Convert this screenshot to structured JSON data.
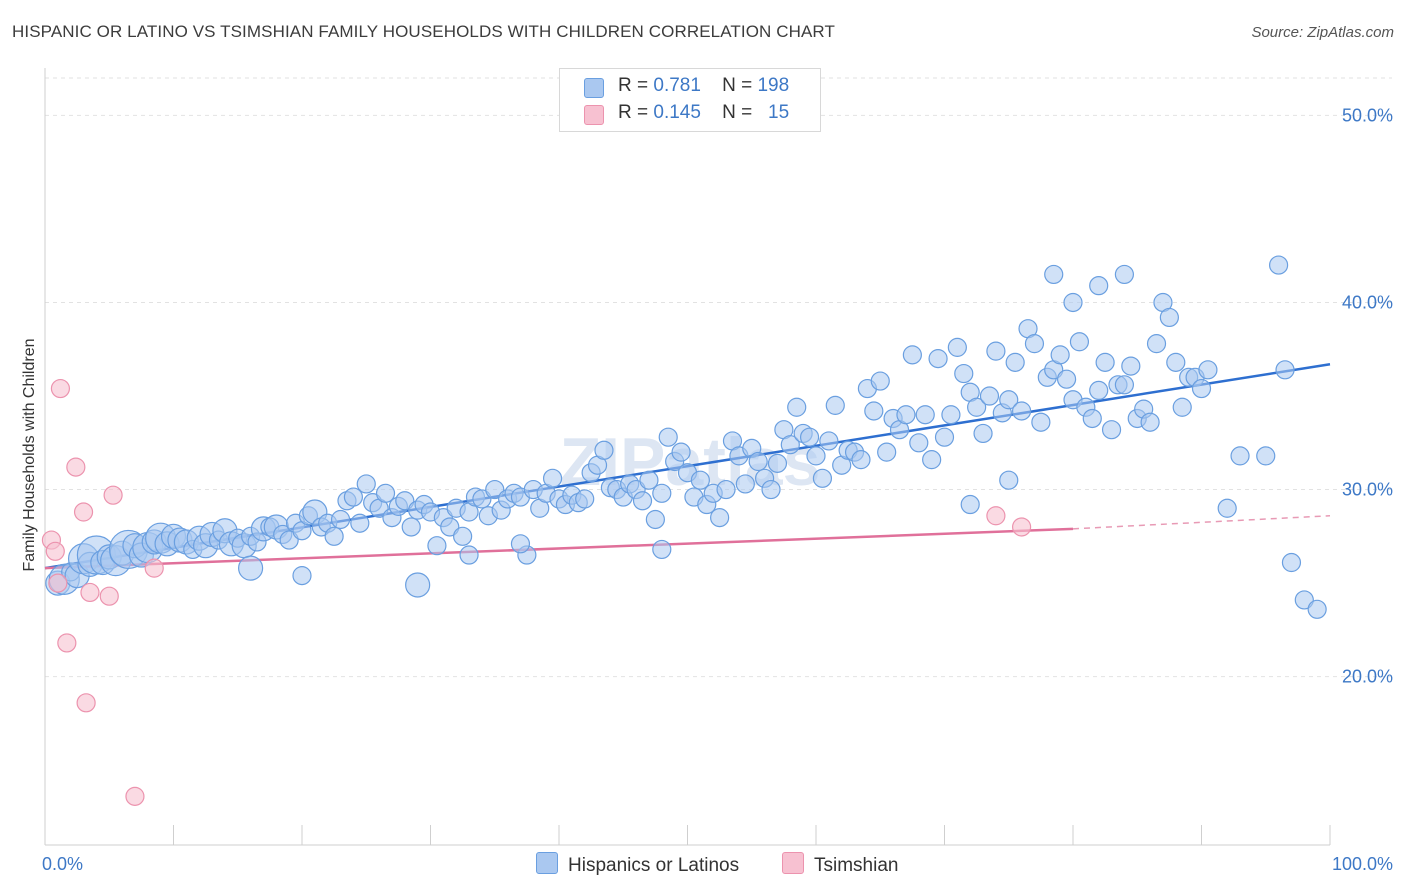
{
  "title": "HISPANIC OR LATINO VS TSIMSHIAN FAMILY HOUSEHOLDS WITH CHILDREN CORRELATION CHART",
  "source": "Source: ZipAtlas.com",
  "watermark": "ZIPatlas",
  "legend": {
    "rows": [
      {
        "r_label": "R =",
        "r_value": "0.781",
        "n_label": "N =",
        "n_value": "198",
        "color": "#aac8f0",
        "border": "#6a9fe0"
      },
      {
        "r_label": "R =",
        "r_value": "0.145",
        "n_label": "N =",
        "n_value": "15",
        "color": "#f7c1d1",
        "border": "#ec93ae"
      }
    ]
  },
  "bottom_legend": {
    "hispanic": {
      "label": "Hispanics or Latinos",
      "color": "#aac8f0"
    },
    "tsimshian": {
      "label": "Tsimshian",
      "color": "#f7c1d1"
    }
  },
  "chart_data": {
    "type": "scatter",
    "title": "HISPANIC OR LATINO VS TSIMSHIAN FAMILY HOUSEHOLDS WITH CHILDREN CORRELATION CHART",
    "xlabel": "",
    "ylabel": "Family Households with Children",
    "xlim": [
      0,
      100
    ],
    "ylim": [
      11,
      52
    ],
    "x_tick_labels": [
      "0.0%",
      "100.0%"
    ],
    "y_ticks": [
      20,
      30,
      40,
      50
    ],
    "y_tick_labels": [
      "20.0%",
      "30.0%",
      "40.0%",
      "50.0%"
    ],
    "grid": true,
    "series": [
      {
        "name": "Hispanics or Latinos",
        "color": "#6a9fe0",
        "fill": "#aac8f0",
        "trend": {
          "x": [
            0,
            100
          ],
          "y": [
            25.8,
            36.7
          ]
        },
        "points": [
          [
            1,
            25.0,
            2
          ],
          [
            1.5,
            25.2,
            3
          ],
          [
            2,
            25.6,
            1
          ],
          [
            2.5,
            25.4,
            2
          ],
          [
            3,
            26.3,
            3
          ],
          [
            3.5,
            26.0,
            2
          ],
          [
            4,
            26.5,
            4
          ],
          [
            4.5,
            26.1,
            2
          ],
          [
            5,
            26.4,
            2
          ],
          [
            5.5,
            26.2,
            3
          ],
          [
            6,
            26.6,
            2
          ],
          [
            6.5,
            26.8,
            4
          ],
          [
            7,
            27.0,
            2
          ],
          [
            7.5,
            26.5,
            2
          ],
          [
            8,
            26.9,
            3
          ],
          [
            8.5,
            27.2,
            2
          ],
          [
            9,
            27.4,
            3
          ],
          [
            9.5,
            27.1,
            2
          ],
          [
            10,
            27.5,
            2
          ],
          [
            10.5,
            27.3,
            2
          ],
          [
            11,
            27.2,
            2
          ],
          [
            11.5,
            26.8,
            1
          ],
          [
            12,
            27.4,
            2
          ],
          [
            12.5,
            27.0,
            2
          ],
          [
            13,
            27.6,
            2
          ],
          [
            13.5,
            27.3,
            1
          ],
          [
            14,
            27.8,
            2
          ],
          [
            14.5,
            27.1,
            2
          ],
          [
            15,
            27.4,
            1
          ],
          [
            15.5,
            27.0,
            2
          ],
          [
            16,
            27.5,
            1
          ],
          [
            16.5,
            27.2,
            1
          ],
          [
            17,
            27.9,
            2
          ],
          [
            17.5,
            28.0,
            1
          ],
          [
            18,
            28.0,
            2
          ],
          [
            18.5,
            27.6,
            1
          ],
          [
            19,
            27.3,
            1
          ],
          [
            19.5,
            28.2,
            1
          ],
          [
            20,
            27.8,
            1
          ],
          [
            20.5,
            28.6,
            1
          ],
          [
            21,
            28.8,
            2
          ],
          [
            21.5,
            28.0,
            1
          ],
          [
            22,
            28.2,
            1
          ],
          [
            22.5,
            27.5,
            1
          ],
          [
            23,
            28.4,
            1
          ],
          [
            23.5,
            29.4,
            1
          ],
          [
            24,
            29.6,
            1
          ],
          [
            24.5,
            28.2,
            1
          ],
          [
            25,
            30.3,
            1
          ],
          [
            25.5,
            29.3,
            1
          ],
          [
            26,
            29.0,
            1
          ],
          [
            26.5,
            29.8,
            1
          ],
          [
            27,
            28.5,
            1
          ],
          [
            27.5,
            29.1,
            1
          ],
          [
            28,
            29.4,
            1
          ],
          [
            28.5,
            28.0,
            1
          ],
          [
            29,
            28.9,
            1
          ],
          [
            29.5,
            29.2,
            1
          ],
          [
            30,
            28.8,
            1
          ],
          [
            30.5,
            27.0,
            1
          ],
          [
            31,
            28.5,
            1
          ],
          [
            31.5,
            28.0,
            1
          ],
          [
            32,
            29.0,
            1
          ],
          [
            32.5,
            27.5,
            1
          ],
          [
            33,
            28.8,
            1
          ],
          [
            33.5,
            29.6,
            1
          ],
          [
            34,
            29.5,
            1
          ],
          [
            34.5,
            28.6,
            1
          ],
          [
            35,
            30.0,
            1
          ],
          [
            35.5,
            28.9,
            1
          ],
          [
            36,
            29.5,
            1
          ],
          [
            36.5,
            29.8,
            1
          ],
          [
            37,
            29.6,
            1
          ],
          [
            37.5,
            26.5,
            1
          ],
          [
            38,
            30.0,
            1
          ],
          [
            38.5,
            29.0,
            1
          ],
          [
            39,
            29.8,
            1
          ],
          [
            39.5,
            30.6,
            1
          ],
          [
            40,
            29.5,
            1
          ],
          [
            40.5,
            29.2,
            1
          ],
          [
            41,
            29.7,
            1
          ],
          [
            41.5,
            29.3,
            1
          ],
          [
            42,
            29.5,
            1
          ],
          [
            42.5,
            30.9,
            1
          ],
          [
            43,
            31.3,
            1
          ],
          [
            43.5,
            32.1,
            1
          ],
          [
            44,
            30.1,
            1
          ],
          [
            44.5,
            30.0,
            1
          ],
          [
            45,
            29.6,
            1
          ],
          [
            45.5,
            30.3,
            1
          ],
          [
            46,
            30.0,
            1
          ],
          [
            46.5,
            29.4,
            1
          ],
          [
            47,
            30.5,
            1
          ],
          [
            47.5,
            28.4,
            1
          ],
          [
            48,
            29.8,
            1
          ],
          [
            48.5,
            32.8,
            1
          ],
          [
            49,
            31.5,
            1
          ],
          [
            49.5,
            32.0,
            1
          ],
          [
            50,
            30.9,
            1
          ],
          [
            50.5,
            29.6,
            1
          ],
          [
            51,
            30.5,
            1
          ],
          [
            51.5,
            29.2,
            1
          ],
          [
            52,
            29.8,
            1
          ],
          [
            52.5,
            28.5,
            1
          ],
          [
            53,
            30.0,
            1
          ],
          [
            53.5,
            32.6,
            1
          ],
          [
            54,
            31.8,
            1
          ],
          [
            54.5,
            30.3,
            1
          ],
          [
            55,
            32.2,
            1
          ],
          [
            55.5,
            31.5,
            1
          ],
          [
            56,
            30.6,
            1
          ],
          [
            56.5,
            30.0,
            1
          ],
          [
            57,
            31.4,
            1
          ],
          [
            57.5,
            33.2,
            1
          ],
          [
            58,
            32.4,
            1
          ],
          [
            58.5,
            34.4,
            1
          ],
          [
            59,
            33.0,
            1
          ],
          [
            59.5,
            32.8,
            1
          ],
          [
            60,
            31.8,
            1
          ],
          [
            60.5,
            30.6,
            1
          ],
          [
            61,
            32.6,
            1
          ],
          [
            61.5,
            34.5,
            1
          ],
          [
            62,
            31.3,
            1
          ],
          [
            62.5,
            32.1,
            1
          ],
          [
            63,
            32.0,
            1
          ],
          [
            63.5,
            31.6,
            1
          ],
          [
            64,
            35.4,
            1
          ],
          [
            64.5,
            34.2,
            1
          ],
          [
            65,
            35.8,
            1
          ],
          [
            65.5,
            32.0,
            1
          ],
          [
            66,
            33.8,
            1
          ],
          [
            66.5,
            33.2,
            1
          ],
          [
            67,
            34.0,
            1
          ],
          [
            67.5,
            37.2,
            1
          ],
          [
            68,
            32.5,
            1
          ],
          [
            68.5,
            34.0,
            1
          ],
          [
            69,
            31.6,
            1
          ],
          [
            69.5,
            37.0,
            1
          ],
          [
            70,
            32.8,
            1
          ],
          [
            70.5,
            34.0,
            1
          ],
          [
            71,
            37.6,
            1
          ],
          [
            71.5,
            36.2,
            1
          ],
          [
            72,
            35.2,
            1
          ],
          [
            72.5,
            34.4,
            1
          ],
          [
            73,
            33.0,
            1
          ],
          [
            73.5,
            35.0,
            1
          ],
          [
            74,
            37.4,
            1
          ],
          [
            74.5,
            34.1,
            1
          ],
          [
            75,
            34.8,
            1
          ],
          [
            75.5,
            36.8,
            1
          ],
          [
            76,
            34.2,
            1
          ],
          [
            76.5,
            38.6,
            1
          ],
          [
            77,
            37.8,
            1
          ],
          [
            77.5,
            33.6,
            1
          ],
          [
            78,
            36.0,
            1
          ],
          [
            78.5,
            36.4,
            1
          ],
          [
            79,
            37.2,
            1
          ],
          [
            79.5,
            35.9,
            1
          ],
          [
            80,
            34.8,
            1
          ],
          [
            80.5,
            37.9,
            1
          ],
          [
            81,
            34.4,
            1
          ],
          [
            81.5,
            33.8,
            1
          ],
          [
            82,
            35.3,
            1
          ],
          [
            82.5,
            36.8,
            1
          ],
          [
            83,
            33.2,
            1
          ],
          [
            83.5,
            35.6,
            1
          ],
          [
            84,
            35.6,
            1
          ],
          [
            84.5,
            36.6,
            1
          ],
          [
            85,
            33.8,
            1
          ],
          [
            85.5,
            34.3,
            1
          ],
          [
            86,
            33.6,
            1
          ],
          [
            86.5,
            37.8,
            1
          ],
          [
            87,
            40.0,
            1
          ],
          [
            87.5,
            39.2,
            1
          ],
          [
            88,
            36.8,
            1
          ],
          [
            88.5,
            34.4,
            1
          ],
          [
            89,
            36.0,
            1
          ],
          [
            89.5,
            36.0,
            1
          ],
          [
            90,
            35.4,
            1
          ],
          [
            90.5,
            36.4,
            1
          ],
          [
            82,
            40.9,
            1
          ],
          [
            78.5,
            41.5,
            1
          ],
          [
            80,
            40.0,
            1
          ],
          [
            84,
            41.5,
            1
          ],
          [
            96,
            42.0,
            1
          ],
          [
            96.5,
            36.4,
            1
          ],
          [
            97,
            26.1,
            1
          ],
          [
            98,
            24.1,
            1
          ],
          [
            99,
            23.6,
            1
          ],
          [
            93,
            31.8,
            1
          ],
          [
            95,
            31.8,
            1
          ],
          [
            92,
            29.0,
            1
          ],
          [
            75,
            30.5,
            1
          ],
          [
            72,
            29.2,
            1
          ],
          [
            48,
            26.8,
            1
          ],
          [
            29,
            24.9,
            2
          ],
          [
            20,
            25.4,
            1
          ],
          [
            16,
            25.8,
            2
          ],
          [
            37,
            27.1,
            1
          ],
          [
            33,
            26.5,
            1
          ]
        ]
      },
      {
        "name": "Tsimshian",
        "color": "#ec93ae",
        "fill": "#f7c1d1",
        "trend": {
          "x": [
            0,
            80
          ],
          "y": [
            25.8,
            27.9
          ]
        },
        "trend_dashed": {
          "x": [
            80,
            100
          ],
          "y": [
            27.9,
            28.6
          ]
        },
        "points": [
          [
            0.5,
            27.3,
            1
          ],
          [
            0.8,
            26.7,
            1
          ],
          [
            1,
            25.0,
            1
          ],
          [
            1.2,
            35.4,
            1
          ],
          [
            1.7,
            21.8,
            1
          ],
          [
            2.4,
            31.2,
            1
          ],
          [
            3,
            28.8,
            1
          ],
          [
            3.2,
            18.6,
            1
          ],
          [
            3.5,
            24.5,
            1
          ],
          [
            5,
            24.3,
            1
          ],
          [
            5.3,
            29.7,
            1
          ],
          [
            7,
            13.6,
            1
          ],
          [
            8.5,
            25.8,
            1
          ],
          [
            74,
            28.6,
            1
          ],
          [
            76,
            28.0,
            1
          ]
        ]
      }
    ]
  }
}
